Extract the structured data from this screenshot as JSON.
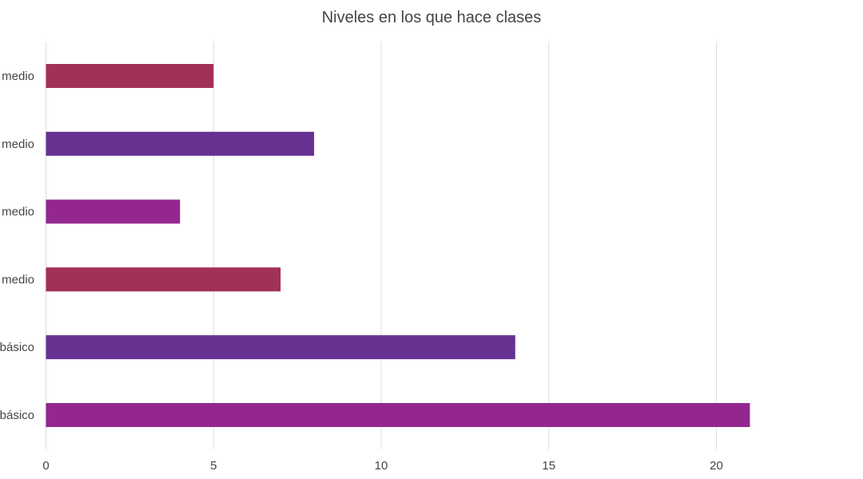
{
  "chart_data": {
    "type": "bar",
    "orientation": "horizontal",
    "title": "Niveles en los que hace clases",
    "xlabel": "",
    "ylabel": "",
    "categories": [
      "medio",
      "medio",
      "medio",
      "medio",
      "básico",
      "básico"
    ],
    "values": [
      5,
      8,
      4,
      7,
      14,
      21
    ],
    "bar_colors": [
      "#A23059",
      "#673191",
      "#93278F",
      "#A23059",
      "#673191",
      "#93278F"
    ],
    "xlim": [
      0,
      24
    ],
    "x_ticks": [
      0,
      5,
      10,
      15,
      20
    ],
    "grid": true,
    "legend": "none"
  }
}
